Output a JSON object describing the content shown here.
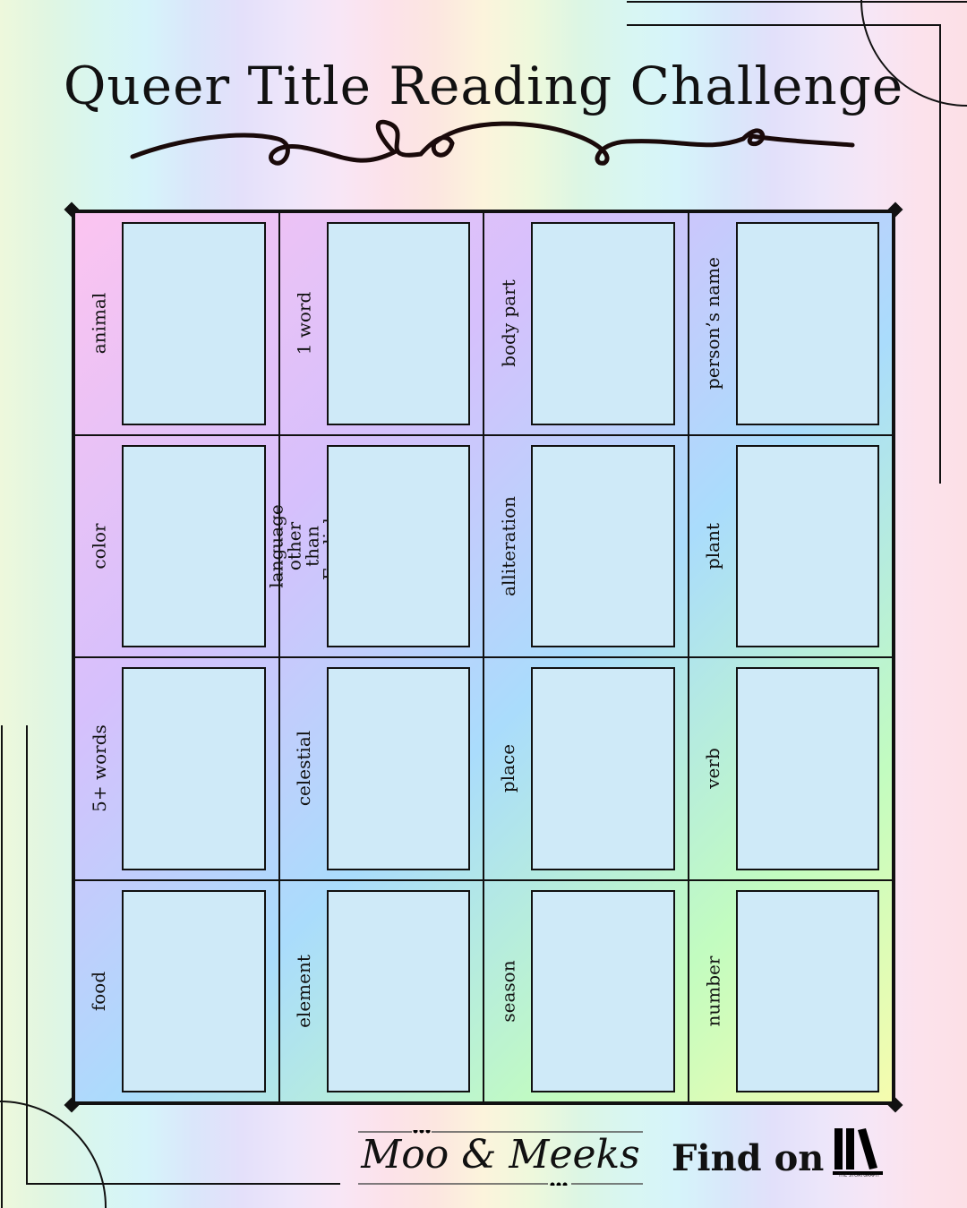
{
  "title": "Queer Title Reading Challenge",
  "cells": [
    "animal",
    "1 word",
    "body part",
    "person’s name",
    "color",
    "language other than English",
    "alliteration",
    "plant",
    "5+ words",
    "celestial",
    "place",
    "verb",
    "food",
    "element",
    "season",
    "number"
  ],
  "footer": {
    "brand": "Moo & Meeks",
    "find_on": "Find on",
    "logo_text": "THE STORYGRAPH"
  },
  "colors": {
    "box": "#cfeaf8",
    "ink": "#111111"
  }
}
